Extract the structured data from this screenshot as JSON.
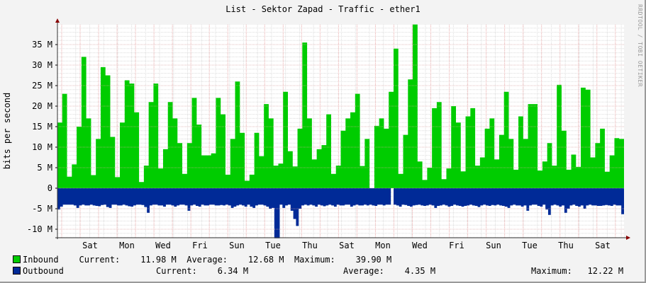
{
  "title": "List - Sektor Zapad - Traffic - ether1",
  "watermark": "RRDTOOL / TOBI OETIKER",
  "legend": {
    "inbound": {
      "label": "Inbound",
      "color": "#00cc00",
      "current_label": "Current:",
      "current": "11.98 M",
      "average_label": "Average:",
      "average": "12.68 M",
      "maximum_label": "Maximum:",
      "maximum": "39.90 M"
    },
    "outbound": {
      "label": "Outbound",
      "color": "#002a97",
      "current_label": "Current:",
      "current": "6.34 M",
      "average_label": "Average:",
      "average": "4.35 M",
      "maximum_label": "Maximum:",
      "maximum": "12.22 M"
    }
  },
  "chart_data": {
    "type": "area",
    "title": "List - Sektor Zapad - Traffic - ether1",
    "xlabel": "",
    "ylabel": "bits per second",
    "ylim": [
      -12,
      40
    ],
    "y_ticks": [
      "35 M",
      "30 M",
      "25 M",
      "20 M",
      "15 M",
      "10 M",
      "5 M",
      "0",
      "-5 M",
      "-10 M"
    ],
    "y_tick_values": [
      35,
      30,
      25,
      20,
      15,
      10,
      5,
      0,
      -5,
      -10
    ],
    "x_tick_labels": [
      "Sat",
      "Mon",
      "Wed",
      "Fri",
      "Sun",
      "Tue",
      "Thu",
      "Sat",
      "Mon",
      "Wed",
      "Fri",
      "Sun",
      "Tue",
      "Thu",
      "Sat"
    ],
    "grid": true,
    "legend_position": "bottom",
    "units": "M",
    "series": [
      {
        "name": "Inbound",
        "color": "#00cc00",
        "values": [
          16,
          16,
          23,
          23,
          2.8,
          2.8,
          5.8,
          5.8,
          15,
          15,
          32,
          32,
          17,
          17,
          3.2,
          3.2,
          12,
          12,
          29.5,
          29.5,
          27.5,
          27.5,
          12.5,
          12.5,
          2.7,
          2.7,
          16,
          16,
          26.3,
          26.3,
          25.5,
          25.5,
          18.5,
          18.5,
          1.5,
          1.5,
          5.5,
          5.5,
          21,
          21,
          25.5,
          25.5,
          4.8,
          4.8,
          9.5,
          9.5,
          21,
          21,
          17,
          17,
          11,
          11,
          3.5,
          3.5,
          11,
          11,
          22,
          22,
          15.5,
          15.5,
          8,
          8,
          8,
          8,
          8.5,
          8.5,
          22,
          22,
          18,
          18,
          3.3,
          3.3,
          12,
          12,
          26,
          26,
          13.5,
          13.5,
          1.8,
          1.8,
          3.3,
          3.3,
          13.5,
          13.5,
          7.8,
          7.8,
          20.5,
          20.5,
          17,
          17,
          5.5,
          5.5,
          6,
          6,
          23.5,
          23.5,
          9,
          9,
          5.3,
          5.3,
          14.5,
          14.5,
          35.5,
          35.5,
          17,
          17,
          7,
          7,
          9.5,
          9.5,
          10.5,
          10.5,
          18,
          18,
          3.5,
          3.5,
          5.5,
          5.5,
          14,
          14,
          17,
          17,
          18.5,
          18.5,
          23,
          23,
          5.4,
          5.4,
          12,
          12,
          0,
          0,
          15.2,
          15.2,
          17,
          17,
          14.5,
          14.5,
          23.5,
          23.5,
          34,
          34,
          3.5,
          3.5,
          13,
          13,
          26.5,
          26.5,
          39.9,
          39.9,
          6.5,
          6.5,
          2,
          2,
          5,
          5,
          19.5,
          19.5,
          21,
          21,
          2.2,
          2.2,
          4.8,
          4.8,
          20,
          20,
          16,
          16,
          4.1,
          4.1,
          17.5,
          17.5,
          19.5,
          19.5,
          5.5,
          5.5,
          7.5,
          7.5,
          14.5,
          14.5,
          17,
          17,
          7,
          7,
          13,
          13,
          23.5,
          23.5,
          12,
          12,
          4.5,
          4.5,
          17.5,
          17.5,
          12,
          12,
          20.5,
          20.5,
          20.5,
          20.5,
          4.3,
          4.3,
          6.5,
          6.5,
          11,
          11,
          5.5,
          5.5,
          25.2,
          25.2,
          14,
          14,
          4.5,
          4.5,
          8.2,
          8.2,
          5.2,
          5.2,
          24.5,
          24.5,
          24,
          24,
          7.5,
          7.5,
          11,
          11,
          14.5,
          14.5,
          4,
          4,
          8,
          8,
          12.2,
          12.2,
          12,
          12
        ]
      },
      {
        "name": "Outbound",
        "color": "#002a97",
        "values": [
          -5.2,
          -4.5,
          -4,
          -4,
          -4,
          -4,
          -4.2,
          -4.8,
          -4.2,
          -4,
          -4.2,
          -4.2,
          -4,
          -4.2,
          -4.3,
          -4.4,
          -4.1,
          -4,
          -4.6,
          -4.8,
          -4,
          -4,
          -4.2,
          -4.2,
          -4,
          -4.2,
          -4.4,
          -4.5,
          -4.2,
          -4,
          -4,
          -4.1,
          -4.6,
          -6,
          -4.2,
          -4,
          -4,
          -4.2,
          -4.2,
          -4.5,
          -4,
          -4,
          -4.2,
          -4.5,
          -4.2,
          -4,
          -4,
          -4.2,
          -5.5,
          -4.2,
          -4,
          -4.3,
          -4.5,
          -4,
          -4.2,
          -4.2,
          -4,
          -4,
          -4.2,
          -4.2,
          -4.1,
          -4.2,
          -4,
          -4.2,
          -4.8,
          -4.5,
          -4.2,
          -4,
          -4.2,
          -4.5,
          -4,
          -4.5,
          -4.8,
          -4.2,
          -4,
          -4,
          -4.2,
          -4.5,
          -5,
          -4.8,
          -12.2,
          -12.2,
          -4,
          -4.8,
          -4.2,
          -4,
          -5.5,
          -7.5,
          -9.2,
          -5,
          -4.2,
          -4,
          -4.2,
          -4,
          -4.2,
          -4.5,
          -4,
          -4.2,
          -4.4,
          -4.2,
          -4,
          -4.2,
          -4.5,
          -4,
          -4.2,
          -4.2,
          -4,
          -4,
          -4.5,
          -4.2,
          -4,
          -4.2,
          -4.2,
          -4,
          -4.2,
          -4,
          -4.2,
          -4.3,
          -4,
          -4,
          -4.2,
          -4,
          -4,
          0,
          -4,
          -4.2,
          -4.5,
          -4,
          -4.1,
          -4.3,
          -4.5,
          -4.2,
          -4.1,
          -4,
          -4.2,
          -4.3,
          -4.2,
          -4,
          -4.2,
          -4.8,
          -4.3,
          -4.2,
          -4,
          -4.2,
          -4.5,
          -4.3,
          -4,
          -4.2,
          -4.3,
          -4.5,
          -4.3,
          -4.2,
          -4,
          -4.2,
          -4.3,
          -4.6,
          -4.2,
          -4,
          -4.2,
          -4.3,
          -4.1,
          -4.2,
          -4,
          -4.2,
          -4.3,
          -4.5,
          -4.8,
          -4.2,
          -4,
          -4.2,
          -4.2,
          -4.5,
          -4.2,
          -5.5,
          -4.2,
          -4,
          -4,
          -4.3,
          -4.5,
          -4,
          -5.2,
          -6.5,
          -4.2,
          -4,
          -4.2,
          -4.5,
          -4.2,
          -6,
          -5,
          -4.2,
          -4,
          -4.3,
          -4.5,
          -4.2,
          -5,
          -4.2,
          -4,
          -4.2,
          -4.2,
          -4.3,
          -4.3,
          -4.2,
          -4.1,
          -4.2,
          -4.3,
          -4,
          -4.2,
          -4.2,
          -6.34
        ]
      }
    ]
  }
}
